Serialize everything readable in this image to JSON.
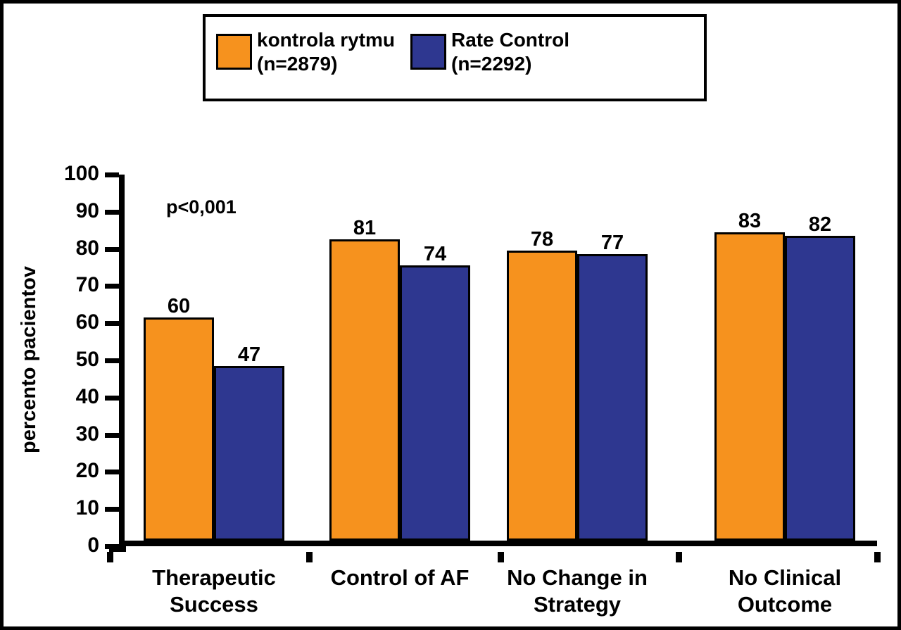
{
  "figure": {
    "background": "#FFFFFF",
    "frame_color": "#000000"
  },
  "legend": {
    "items": [
      {
        "name": "kontrola rytmu",
        "n_label": "(n=2879)",
        "color": "#F6921E"
      },
      {
        "name": "Rate Control",
        "n_label": "(n=2292)",
        "color": "#2E3790"
      }
    ]
  },
  "annotation": {
    "text": "p<0,001"
  },
  "chart_data": {
    "type": "bar",
    "title": "",
    "xlabel": "",
    "ylabel": "percento pacientov",
    "ylim": [
      0,
      100
    ],
    "ytick_step": 10,
    "grid": false,
    "legend_position": "top",
    "annotation": "p<0,001",
    "categories": [
      [
        "Therapeutic",
        "Success"
      ],
      [
        "Control of AF"
      ],
      [
        "No Change in",
        "Strategy"
      ],
      [
        "No Clinical",
        "Outcome"
      ]
    ],
    "series": [
      {
        "name": "kontrola rytmu (n=2879)",
        "color": "#F6921E",
        "values": [
          60,
          81,
          78,
          83
        ]
      },
      {
        "name": "Rate Control (n=2292)",
        "color": "#2E3790",
        "values": [
          47,
          74,
          77,
          82
        ]
      }
    ]
  }
}
